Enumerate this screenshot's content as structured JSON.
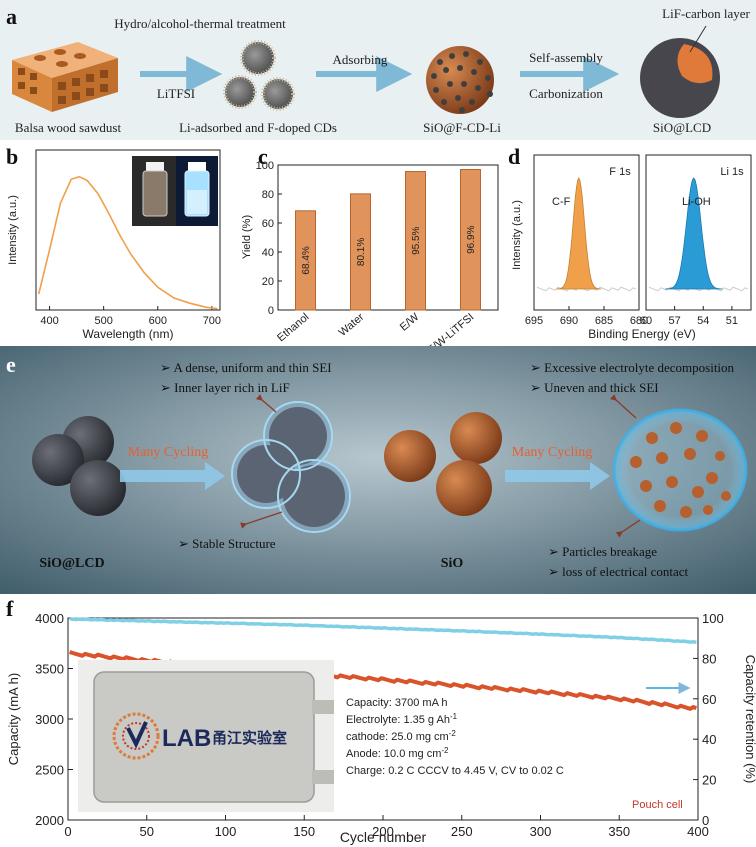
{
  "panel_a": {
    "letter": "a",
    "step1_top": "Hydro/alcohol-thermal treatment",
    "step1_bottom": "LiTFSI",
    "step2": "Adsorbing",
    "step3_top": "Self-assembly",
    "step3_bottom": "Carbonization",
    "layer_label": "LiF-carbon layer",
    "captions": [
      "Balsa wood sawdust",
      "Li-adsorbed and F-doped CDs",
      "SiO@F-CD-Li",
      "SiO@LCD"
    ],
    "colors": {
      "background": "#e8f0f2",
      "arrow": "#7fb9d6",
      "wood": "#d9873c",
      "sphere": "#6b4b3a",
      "shell": "#4a4a4f",
      "core": "#e07a3a"
    }
  },
  "panel_b": {
    "letter": "b",
    "chart_data": {
      "type": "line",
      "title": "",
      "xlabel": "Wavelength (nm)",
      "ylabel": "Intensity (a.u.)",
      "xlim": [
        375,
        715
      ],
      "ylim": [
        0,
        1.2
      ],
      "x_ticks": [
        "400",
        "500",
        "600",
        "700"
      ],
      "x": [
        380,
        400,
        420,
        440,
        455,
        470,
        490,
        510,
        530,
        550,
        575,
        600,
        630,
        660,
        690,
        710
      ],
      "y": [
        0.12,
        0.45,
        0.8,
        0.98,
        1.0,
        0.97,
        0.87,
        0.72,
        0.56,
        0.42,
        0.28,
        0.17,
        0.09,
        0.05,
        0.02,
        0.01
      ],
      "color": "#f0a04b"
    }
  },
  "panel_c": {
    "letter": "c",
    "chart_data": {
      "type": "bar",
      "title": "",
      "xlabel": "",
      "ylabel": "Yield (%)",
      "ylim": [
        0,
        100
      ],
      "y_ticks": [
        "0",
        "20",
        "40",
        "60",
        "80",
        "100"
      ],
      "categories": [
        "Ethanol",
        "Water",
        "E/W",
        "E/W-LiTFSI"
      ],
      "values": [
        68.4,
        80.1,
        95.5,
        96.9
      ],
      "labels": [
        "68.4%",
        "80.1%",
        "95.5%",
        "96.9%"
      ],
      "color": "#e0935a"
    }
  },
  "panel_d": {
    "letter": "d",
    "ylabel": "Intensity (a.u.)",
    "xlabel": "Binding Energy (eV)",
    "chart_data": [
      {
        "type": "area",
        "title": "F 1s",
        "peak_label": "C-F",
        "xlim": [
          695,
          680
        ],
        "x_ticks": [
          "695",
          "690",
          "685",
          "680"
        ],
        "peak_center": 688.6,
        "peak_width": 0.8,
        "color": "#f0a04b"
      },
      {
        "type": "area",
        "title": "Li 1s",
        "peak_label": "Li-OH",
        "xlim": [
          60,
          49
        ],
        "x_ticks": [
          "60",
          "57",
          "54",
          "51"
        ],
        "peak_center": 55.0,
        "peak_width": 0.75,
        "color": "#2b9bd6"
      }
    ]
  },
  "panel_e": {
    "letter": "e",
    "left_bullets": [
      "A dense, uniform and thin SEI",
      "Inner layer rich in LiF"
    ],
    "left_bottom": "Stable Structure",
    "left_arrow": "Many Cycling",
    "left_label": "SiO@LCD",
    "right_bullets": [
      "Excessive electrolyte decomposition",
      "Uneven and thick SEI"
    ],
    "right_bottom": [
      "Particles breakage",
      "loss of electrical contact"
    ],
    "right_arrow": "Many Cycling",
    "right_label": "SiO",
    "colors": {
      "background": "#4a6572",
      "arrow_text": "#e8602c",
      "dark_particle": "#3b3d44",
      "orange_particle": "#b5602e",
      "sei": "#7fc8ec"
    }
  },
  "panel_f": {
    "letter": "f",
    "chart_data": {
      "type": "scatter",
      "xlabel": "Cycle number",
      "ylabel": "Capacity (mA h)",
      "y2label": "Capacity retention (%)",
      "xlim": [
        0,
        400
      ],
      "ylim": [
        2000,
        4000
      ],
      "y2lim": [
        0,
        100
      ],
      "x_ticks": [
        "0",
        "50",
        "100",
        "150",
        "200",
        "250",
        "300",
        "350",
        "400"
      ],
      "y_ticks": [
        "2000",
        "2500",
        "3000",
        "3500",
        "4000"
      ],
      "y2_ticks": [
        "0",
        "20",
        "40",
        "60",
        "80",
        "100"
      ],
      "series": [
        {
          "name": "Capacity",
          "axis": "left",
          "color": "#d9542a",
          "x": [
            1,
            50,
            100,
            150,
            200,
            250,
            300,
            350,
            400
          ],
          "values": [
            3650,
            3580,
            3510,
            3450,
            3390,
            3330,
            3270,
            3200,
            3100
          ]
        },
        {
          "name": "Capacity retention",
          "axis": "right",
          "color": "#7fd0e6",
          "x": [
            1,
            50,
            100,
            150,
            200,
            250,
            300,
            350,
            400
          ],
          "values": [
            99.5,
            98.5,
            97.5,
            96.4,
            95.0,
            93.6,
            92.0,
            90.3,
            88.0
          ]
        }
      ]
    },
    "specs": [
      "Capacity: 3700 mA h",
      "Electrolyte: 1.35 g Ah",
      "cathode: 25.0 mg cm",
      "Anode: 10.0 mg cm",
      "Charge: 0.2 C CCCV to 4.45 V, CV to 0.02 C"
    ],
    "spec_sups": [
      "-1",
      "-2",
      "-2"
    ],
    "cell_label": "Pouch cell",
    "lab_text": "LAB",
    "lab_chinese": "甬江实验室",
    "colors": {
      "pouch": "#c9c9c6",
      "retention_arrow": "#5bb8e0"
    }
  }
}
